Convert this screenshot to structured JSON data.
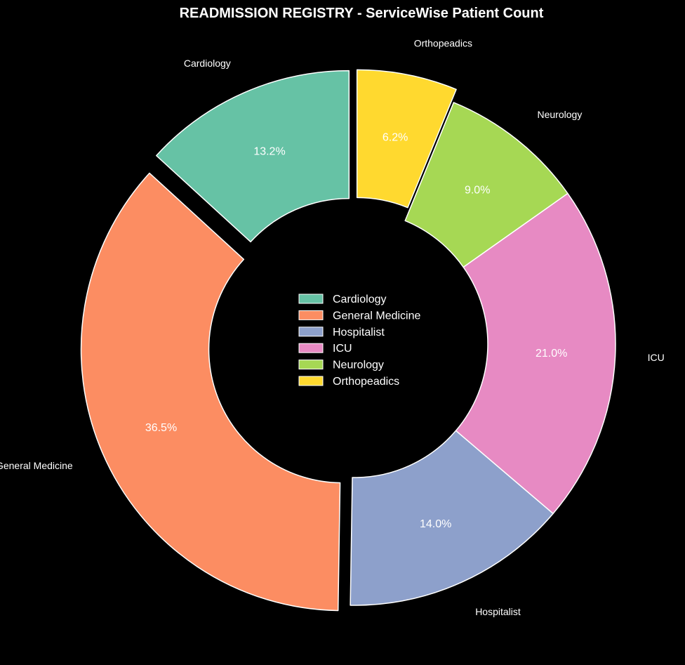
{
  "chart_data": {
    "type": "pie",
    "variant": "donut",
    "title": "READMISSION REGISTRY - ServiceWise Patient Count",
    "categories": [
      "Cardiology",
      "General Medicine",
      "Hospitalist",
      "ICU",
      "Neurology",
      "Orthopeadics"
    ],
    "values": [
      13.2,
      36.5,
      14.0,
      21.0,
      9.0,
      6.2
    ],
    "value_labels": [
      "13.2%",
      "36.5%",
      "14.0%",
      "21.0%",
      "9.0%",
      "6.2%"
    ],
    "colors": [
      "#66c2a5",
      "#fc8d62",
      "#8da0cb",
      "#e78ac3",
      "#a6d854",
      "#ffd92f"
    ],
    "exploded": [
      "Cardiology",
      "General Medicine",
      "Orthopeadics"
    ],
    "start": "top, counterclockwise",
    "legend": {
      "position": "center",
      "entries": [
        "Cardiology",
        "General Medicine",
        "Hospitalist",
        "ICU",
        "Neurology",
        "Orthopeadics"
      ]
    }
  }
}
